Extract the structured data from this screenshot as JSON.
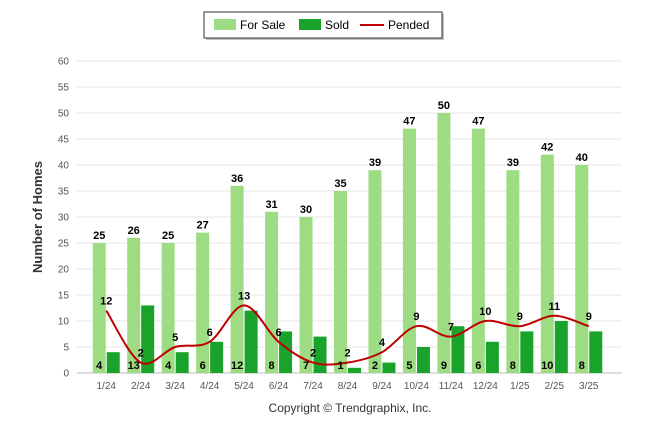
{
  "chart_data": {
    "type": "bar",
    "ylabel": "Number of Homes",
    "ylim": [
      0,
      60
    ],
    "yticks": [
      0,
      5,
      10,
      15,
      20,
      25,
      30,
      35,
      40,
      45,
      50,
      55,
      60
    ],
    "grid": true,
    "legend_position": "top-center",
    "categories": [
      "1/24",
      "2/24",
      "3/24",
      "4/24",
      "5/24",
      "6/24",
      "7/24",
      "8/24",
      "9/24",
      "10/24",
      "11/24",
      "12/24",
      "1/25",
      "2/25",
      "3/25"
    ],
    "series": [
      {
        "name": "For Sale",
        "kind": "bar",
        "color": "#9ddc82",
        "values": [
          25,
          26,
          25,
          27,
          36,
          31,
          30,
          35,
          39,
          47,
          50,
          47,
          39,
          42,
          40
        ]
      },
      {
        "name": "Sold",
        "kind": "bar",
        "color": "#1aa32a",
        "values": [
          4,
          13,
          4,
          6,
          12,
          8,
          7,
          1,
          2,
          5,
          9,
          6,
          8,
          10,
          8
        ]
      },
      {
        "name": "Pended",
        "kind": "line",
        "color": "#c00000",
        "values": [
          12,
          2,
          5,
          6,
          13,
          6,
          2,
          2,
          4,
          9,
          7,
          10,
          9,
          11,
          9
        ]
      }
    ],
    "footer": "Copyright © Trendgraphix, Inc."
  }
}
